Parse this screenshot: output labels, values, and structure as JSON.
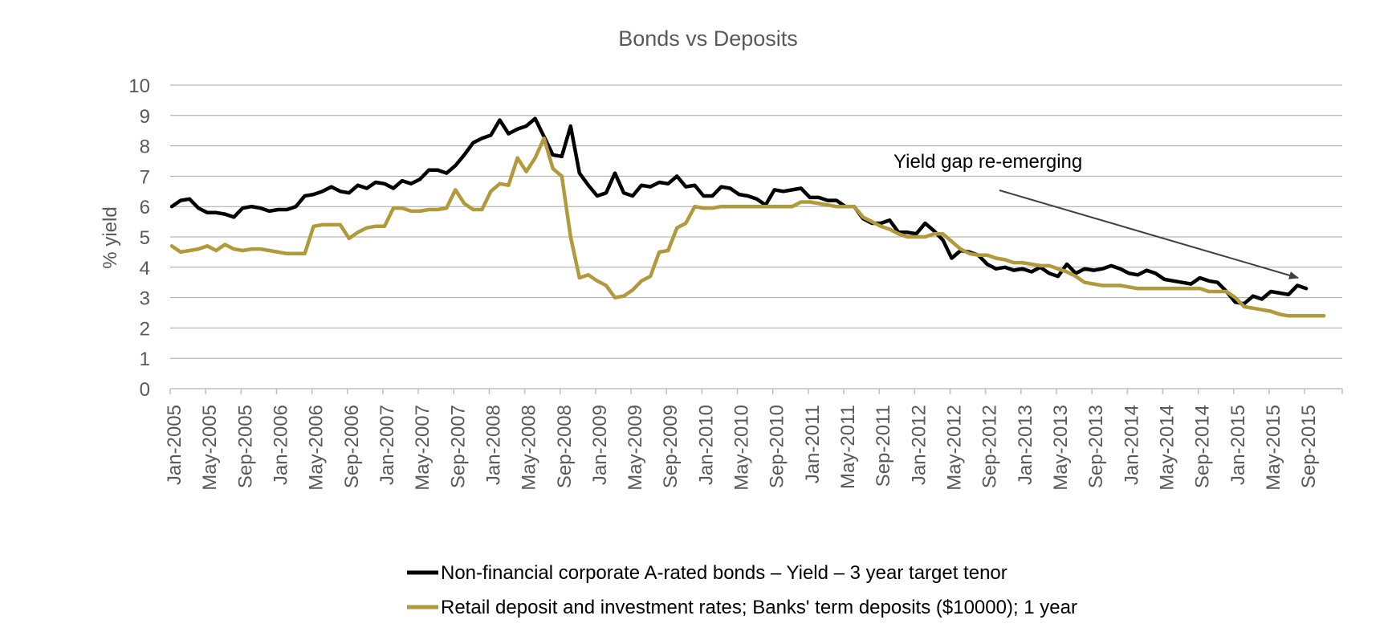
{
  "chart_data": {
    "type": "line",
    "title": "Bonds vs Deposits",
    "ylabel": "% yield",
    "xlabel": "",
    "ylim": [
      0,
      10
    ],
    "yticks": [
      0,
      1,
      2,
      3,
      4,
      5,
      6,
      7,
      8,
      9,
      10
    ],
    "grid": true,
    "legend_position": "bottom",
    "x_tick_labels": [
      "Jan-2005",
      "May-2005",
      "Sep-2005",
      "Jan-2006",
      "May-2006",
      "Sep-2006",
      "Jan-2007",
      "May-2007",
      "Sep-2007",
      "Jan-2008",
      "May-2008",
      "Sep-2008",
      "Jan-2009",
      "May-2009",
      "Sep-2009",
      "Jan-2010",
      "May-2010",
      "Sep-2010",
      "Jan-2011",
      "May-2011",
      "Sep-2011",
      "Jan-2012",
      "May-2012",
      "Sep-2012",
      "Jan-2013",
      "May-2013",
      "Sep-2013",
      "Jan-2014",
      "May-2014",
      "Sep-2014",
      "Jan-2015",
      "May-2015",
      "Sep-2015"
    ],
    "x_start": "Jan-2005",
    "series": [
      {
        "name": "Non-financial corporate A-rated bonds – Yield – 3 year target tenor",
        "color": "#000000",
        "values": [
          6.0,
          6.2,
          6.25,
          5.95,
          5.8,
          5.8,
          5.75,
          5.65,
          5.95,
          6.0,
          5.95,
          5.85,
          5.9,
          5.9,
          6.0,
          6.35,
          6.4,
          6.5,
          6.65,
          6.5,
          6.45,
          6.7,
          6.6,
          6.8,
          6.75,
          6.6,
          6.85,
          6.75,
          6.9,
          7.2,
          7.2,
          7.1,
          7.35,
          7.7,
          8.1,
          8.25,
          8.35,
          8.85,
          8.4,
          8.55,
          8.65,
          8.9,
          8.3,
          7.7,
          7.65,
          8.65,
          7.1,
          6.7,
          6.35,
          6.45,
          7.1,
          6.45,
          6.35,
          6.7,
          6.65,
          6.8,
          6.75,
          7.0,
          6.65,
          6.7,
          6.35,
          6.35,
          6.65,
          6.6,
          6.4,
          6.35,
          6.25,
          6.05,
          6.55,
          6.5,
          6.55,
          6.6,
          6.3,
          6.3,
          6.2,
          6.2,
          6.0,
          6.0,
          5.6,
          5.45,
          5.45,
          5.55,
          5.15,
          5.15,
          5.1,
          5.45,
          5.2,
          4.9,
          4.3,
          4.55,
          4.5,
          4.4,
          4.1,
          3.95,
          4.0,
          3.9,
          3.95,
          3.85,
          4.0,
          3.8,
          3.7,
          4.1,
          3.8,
          3.95,
          3.9,
          3.95,
          4.05,
          3.95,
          3.8,
          3.75,
          3.9,
          3.8,
          3.6,
          3.55,
          3.5,
          3.45,
          3.65,
          3.55,
          3.5,
          3.2,
          2.85,
          2.8,
          3.05,
          2.95,
          3.2,
          3.15,
          3.1,
          3.4,
          3.3
        ]
      },
      {
        "name": "Retail deposit and investment rates; Banks' term deposits ($10000); 1 year",
        "color": "#B09A3B",
        "values": [
          4.7,
          4.5,
          4.55,
          4.6,
          4.7,
          4.55,
          4.75,
          4.6,
          4.55,
          4.6,
          4.6,
          4.55,
          4.5,
          4.45,
          4.45,
          4.45,
          5.35,
          5.4,
          5.4,
          5.4,
          4.95,
          5.15,
          5.3,
          5.35,
          5.35,
          5.95,
          5.95,
          5.85,
          5.85,
          5.9,
          5.9,
          5.95,
          6.55,
          6.1,
          5.9,
          5.9,
          6.5,
          6.75,
          6.7,
          7.6,
          7.15,
          7.6,
          8.25,
          7.25,
          7.0,
          5.0,
          3.65,
          3.75,
          3.55,
          3.4,
          3.0,
          3.05,
          3.25,
          3.55,
          3.7,
          4.5,
          4.55,
          5.3,
          5.45,
          6.0,
          5.95,
          5.95,
          6.0,
          6.0,
          6.0,
          6.0,
          6.0,
          6.0,
          6.0,
          6.0,
          6.0,
          6.15,
          6.15,
          6.1,
          6.05,
          6.0,
          6.0,
          6.0,
          5.65,
          5.5,
          5.35,
          5.25,
          5.1,
          5.0,
          5.0,
          5.0,
          5.1,
          5.1,
          4.85,
          4.6,
          4.45,
          4.4,
          4.4,
          4.3,
          4.25,
          4.15,
          4.15,
          4.1,
          4.05,
          4.05,
          3.95,
          3.85,
          3.7,
          3.5,
          3.45,
          3.4,
          3.4,
          3.4,
          3.35,
          3.3,
          3.3,
          3.3,
          3.3,
          3.3,
          3.3,
          3.3,
          3.3,
          3.2,
          3.2,
          3.2,
          3.0,
          2.7,
          2.65,
          2.6,
          2.55,
          2.45,
          2.4,
          2.4,
          2.4,
          2.4,
          2.4
        ]
      }
    ],
    "annotations": [
      {
        "text": "Yield gap re-emerging"
      }
    ]
  }
}
